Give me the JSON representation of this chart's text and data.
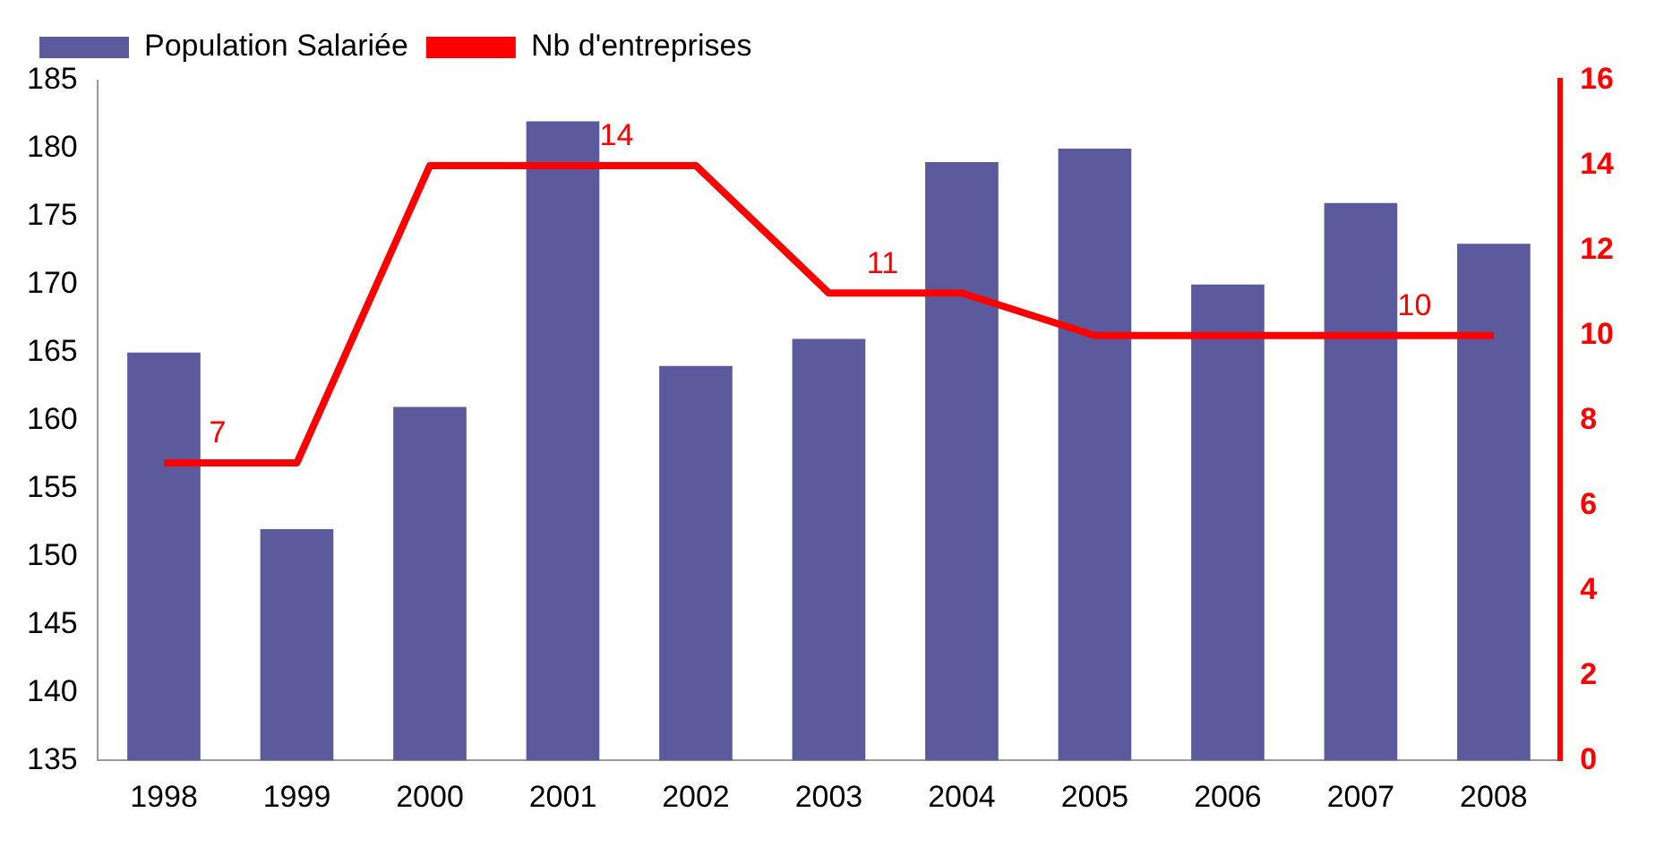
{
  "chart_data": {
    "type": "bar",
    "categories": [
      "1998",
      "1999",
      "2000",
      "2001",
      "2002",
      "2003",
      "2004",
      "2005",
      "2006",
      "2007",
      "2008"
    ],
    "series": [
      {
        "name": "Population Salariée",
        "color": "#5a5a9c",
        "values": [
          165,
          152,
          161,
          182,
          164,
          166,
          179,
          180,
          170,
          176,
          173
        ]
      },
      {
        "name": "Nb d'entreprises",
        "type": "line",
        "axis": "y2",
        "color": "#ff0000",
        "values": [
          7,
          7,
          14,
          14,
          14,
          11,
          11,
          10,
          10,
          10,
          10
        ],
        "value_labels": [
          "7",
          null,
          null,
          "14",
          null,
          "11",
          null,
          null,
          null,
          "10",
          null
        ]
      }
    ],
    "ylim": [
      135,
      185
    ],
    "yticks": [
      135,
      140,
      145,
      150,
      155,
      160,
      165,
      170,
      175,
      180,
      185
    ],
    "y2lim": [
      0,
      16
    ],
    "y2ticks": [
      0,
      2,
      4,
      6,
      8,
      10,
      12,
      14,
      16
    ],
    "legend": "top left",
    "grid": false,
    "marker": "none",
    "line_style": "solid"
  }
}
